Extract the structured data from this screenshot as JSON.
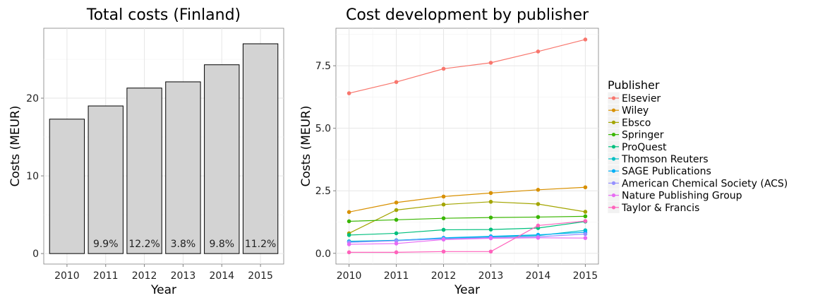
{
  "chart_data": [
    {
      "type": "bar",
      "title": "Total costs (Finland)",
      "xlabel": "Year",
      "ylabel": "Costs (MEUR)",
      "categories": [
        "2010",
        "2011",
        "2012",
        "2013",
        "2014",
        "2015"
      ],
      "values": [
        17.3,
        19.0,
        21.3,
        22.1,
        24.3,
        27.0
      ],
      "bar_labels": [
        "",
        "9.9%",
        "12.2%",
        "3.8%",
        "9.8%",
        "11.2%"
      ],
      "yticks": [
        0,
        10,
        20
      ],
      "ylim": [
        -1.35,
        29.0
      ],
      "bar_fill": "#d3d3d3",
      "grid": true
    },
    {
      "type": "line",
      "title": "Cost development by publisher",
      "xlabel": "Year",
      "ylabel": "Costs (MEUR)",
      "x": [
        2010,
        2011,
        2012,
        2013,
        2014,
        2015
      ],
      "yticks": [
        0.0,
        2.5,
        5.0,
        7.5
      ],
      "ytick_labels": [
        "0.0",
        "2.5",
        "5.0",
        "7.5"
      ],
      "ylim": [
        -0.43,
        9.0
      ],
      "grid": true,
      "legend_title": "Publisher",
      "legend_position": "right",
      "series": [
        {
          "name": "Elsevier",
          "color": "#F8766D",
          "values": [
            6.4,
            6.85,
            7.38,
            7.62,
            8.07,
            8.55
          ]
        },
        {
          "name": "Wiley",
          "color": "#D89000",
          "values": [
            1.65,
            2.03,
            2.27,
            2.41,
            2.54,
            2.64
          ]
        },
        {
          "name": "Ebsco",
          "color": "#A3A500",
          "values": [
            0.8,
            1.73,
            1.95,
            2.06,
            1.97,
            1.66
          ]
        },
        {
          "name": "Springer",
          "color": "#39B600",
          "values": [
            1.28,
            1.34,
            1.4,
            1.43,
            1.45,
            1.48
          ]
        },
        {
          "name": "ProQuest",
          "color": "#00BF7D",
          "values": [
            0.73,
            0.8,
            0.94,
            0.95,
            1.01,
            1.27
          ]
        },
        {
          "name": "Thomson Reuters",
          "color": "#00BFC4",
          "values": [
            0.48,
            0.52,
            0.6,
            0.66,
            0.71,
            0.92
          ]
        },
        {
          "name": "SAGE Publications",
          "color": "#00B0F6",
          "values": [
            0.46,
            0.51,
            0.62,
            0.68,
            0.74,
            0.84
          ]
        },
        {
          "name": "American Chemical Society (ACS)",
          "color": "#9590FF",
          "values": [
            0.44,
            0.5,
            0.58,
            0.63,
            0.66,
            0.77
          ]
        },
        {
          "name": "Nature Publishing Group",
          "color": "#E76BF3",
          "values": [
            0.36,
            0.39,
            0.55,
            0.6,
            0.62,
            0.61
          ]
        },
        {
          "name": "Taylor & Francis",
          "color": "#FF62BC",
          "values": [
            0.04,
            0.04,
            0.07,
            0.07,
            1.11,
            1.29
          ]
        }
      ]
    }
  ]
}
